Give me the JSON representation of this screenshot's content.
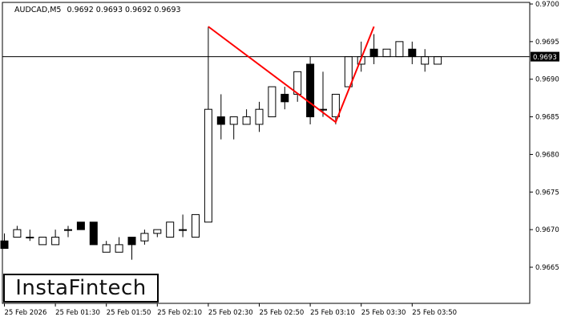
{
  "header": {
    "symbol": "AUDCAD,M5",
    "ohlc": "0.9692 0.9693 0.9692 0.9693"
  },
  "logo": {
    "text": "InstaFintech"
  },
  "colors": {
    "bull_fill": "#ffffff",
    "bear_fill": "#000000",
    "candle_stroke": "#000000",
    "pattern_line": "#ff0000",
    "price_line": "#000000",
    "grid": "#000000"
  },
  "chart_data": {
    "type": "candlestick",
    "symbol": "AUDCAD",
    "timeframe": "M5",
    "current_price": "0.9693",
    "ylim": [
      0.966,
      0.97
    ],
    "y_ticks": [
      "0.9700",
      "0.9695",
      "0.9690",
      "0.9685",
      "0.9680",
      "0.9675",
      "0.9670",
      "0.9665"
    ],
    "x_ticks": [
      "25 Feb 2026",
      "25 Feb 01:30",
      "25 Feb 01:50",
      "25 Feb 02:10",
      "25 Feb 02:30",
      "25 Feb 02:50",
      "25 Feb 03:10",
      "25 Feb 03:30",
      "25 Feb 03:50"
    ],
    "x_tick_index": [
      0,
      4,
      8,
      12,
      16,
      20,
      24,
      28,
      32
    ],
    "candles": [
      {
        "o": 0.96685,
        "h": 0.96695,
        "l": 0.96675,
        "c": 0.96675
      },
      {
        "o": 0.9669,
        "h": 0.96705,
        "l": 0.9669,
        "c": 0.967
      },
      {
        "o": 0.9669,
        "h": 0.967,
        "l": 0.96685,
        "c": 0.9669
      },
      {
        "o": 0.9668,
        "h": 0.9669,
        "l": 0.9668,
        "c": 0.9669
      },
      {
        "o": 0.9668,
        "h": 0.967,
        "l": 0.9668,
        "c": 0.9669
      },
      {
        "o": 0.967,
        "h": 0.96705,
        "l": 0.9669,
        "c": 0.967
      },
      {
        "o": 0.9671,
        "h": 0.9671,
        "l": 0.967,
        "c": 0.967
      },
      {
        "o": 0.9671,
        "h": 0.9671,
        "l": 0.9668,
        "c": 0.9668
      },
      {
        "o": 0.9667,
        "h": 0.96685,
        "l": 0.9667,
        "c": 0.9668
      },
      {
        "o": 0.9667,
        "h": 0.9669,
        "l": 0.9667,
        "c": 0.9668
      },
      {
        "o": 0.9669,
        "h": 0.9669,
        "l": 0.9666,
        "c": 0.9668
      },
      {
        "o": 0.96685,
        "h": 0.967,
        "l": 0.9668,
        "c": 0.96695
      },
      {
        "o": 0.96695,
        "h": 0.967,
        "l": 0.9669,
        "c": 0.967
      },
      {
        "o": 0.9669,
        "h": 0.9671,
        "l": 0.9669,
        "c": 0.9671
      },
      {
        "o": 0.967,
        "h": 0.9672,
        "l": 0.9669,
        "c": 0.967
      },
      {
        "o": 0.9669,
        "h": 0.9672,
        "l": 0.9669,
        "c": 0.9672
      },
      {
        "o": 0.9671,
        "h": 0.9697,
        "l": 0.9671,
        "c": 0.9686
      },
      {
        "o": 0.9685,
        "h": 0.9688,
        "l": 0.9682,
        "c": 0.9684
      },
      {
        "o": 0.9684,
        "h": 0.9685,
        "l": 0.9682,
        "c": 0.9685
      },
      {
        "o": 0.9684,
        "h": 0.9686,
        "l": 0.9684,
        "c": 0.9685
      },
      {
        "o": 0.9684,
        "h": 0.9687,
        "l": 0.9683,
        "c": 0.9686
      },
      {
        "o": 0.9685,
        "h": 0.9689,
        "l": 0.9685,
        "c": 0.9689
      },
      {
        "o": 0.9688,
        "h": 0.9689,
        "l": 0.9686,
        "c": 0.9687
      },
      {
        "o": 0.9688,
        "h": 0.9691,
        "l": 0.9687,
        "c": 0.9691
      },
      {
        "o": 0.9692,
        "h": 0.9693,
        "l": 0.9684,
        "c": 0.9685
      },
      {
        "o": 0.9686,
        "h": 0.9691,
        "l": 0.9685,
        "c": 0.9686
      },
      {
        "o": 0.9685,
        "h": 0.9688,
        "l": 0.9684,
        "c": 0.9688
      },
      {
        "o": 0.9689,
        "h": 0.9693,
        "l": 0.9689,
        "c": 0.9693
      },
      {
        "o": 0.9692,
        "h": 0.9695,
        "l": 0.9691,
        "c": 0.9693
      },
      {
        "o": 0.9694,
        "h": 0.9696,
        "l": 0.9692,
        "c": 0.9693
      },
      {
        "o": 0.9693,
        "h": 0.9694,
        "l": 0.9693,
        "c": 0.9694
      },
      {
        "o": 0.9693,
        "h": 0.9695,
        "l": 0.9693,
        "c": 0.9695
      },
      {
        "o": 0.9694,
        "h": 0.9695,
        "l": 0.9692,
        "c": 0.9693
      },
      {
        "o": 0.9692,
        "h": 0.9694,
        "l": 0.9691,
        "c": 0.9693
      },
      {
        "o": 0.9692,
        "h": 0.9693,
        "l": 0.9692,
        "c": 0.9693
      }
    ],
    "pattern": {
      "name": "double top",
      "points": [
        {
          "index": 16,
          "price": 0.9697
        },
        {
          "index": 26,
          "price": 0.96843
        },
        {
          "index": 29,
          "price": 0.9697
        }
      ]
    },
    "grid": false
  }
}
